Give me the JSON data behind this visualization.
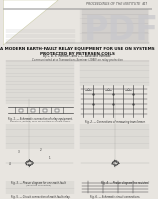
{
  "bg_color": "#e8e5e0",
  "page_color": "#f5f4f0",
  "header_text": "PROCEEDINGS OF THE INSTITUTE",
  "page_num": "447",
  "paper_title": "A MODERN EARTH-FAULT RELAY EQUIPMENT FOR USE ON SYSTEMS\nPROTECTED BY PETERSEN COILS",
  "authors": "By L. B. S. Member, and C. L. Associate Member.",
  "subtitle": "Communicated at a Transactions-Seminar (1948) on relay protection",
  "text_color": "#2a2a2a",
  "light_text": "#555555",
  "line_color": "#444444",
  "fig_text_color": "#222222",
  "fold_color": "#ffffff",
  "pdf_color": "#c8c8cc"
}
